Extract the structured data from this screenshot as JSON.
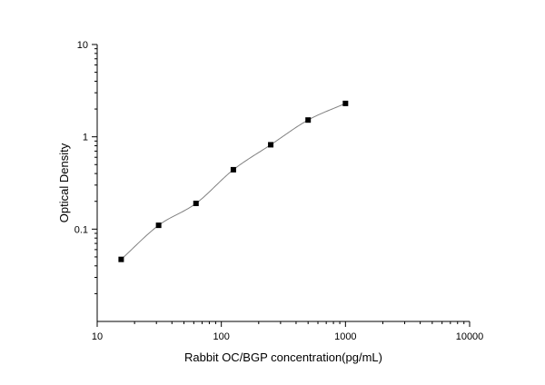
{
  "chart_data": {
    "type": "scatter",
    "title": "",
    "xlabel": "Rabbit OC/BGP concentration(pg/mL)",
    "ylabel": "Optical Density",
    "xscale": "log",
    "yscale": "log",
    "xlim": [
      10,
      10000
    ],
    "ylim": [
      0.01,
      10
    ],
    "x_ticks": [
      10,
      100,
      1000,
      10000
    ],
    "x_tick_labels": [
      "10",
      "100",
      "1000",
      "10000"
    ],
    "y_ticks": [
      0.1,
      1,
      10
    ],
    "y_tick_labels": [
      "0.1",
      "1",
      "10"
    ],
    "grid": false,
    "legend": "none",
    "series": [
      {
        "marker": "square",
        "color": "#000000",
        "points": [
          {
            "x": 15.6,
            "y": 0.047
          },
          {
            "x": 31.25,
            "y": 0.11
          },
          {
            "x": 62.5,
            "y": 0.19
          },
          {
            "x": 125,
            "y": 0.44
          },
          {
            "x": 250,
            "y": 0.82
          },
          {
            "x": 500,
            "y": 1.52
          },
          {
            "x": 1000,
            "y": 2.3
          }
        ],
        "fit_curve": {
          "color": "#808080",
          "from_x": 15.6,
          "to_x": 1000
        }
      }
    ]
  }
}
